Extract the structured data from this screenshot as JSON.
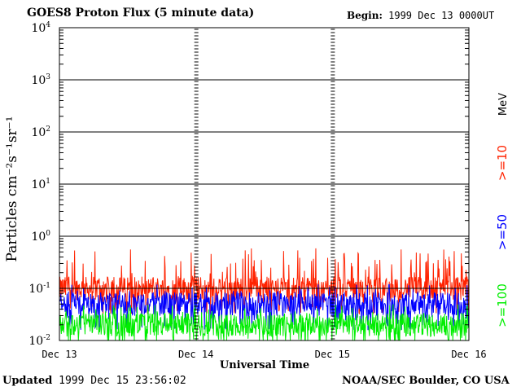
{
  "header": {
    "title": "GOES8 Proton Flux (5 minute data)",
    "begin_label": "Begin:",
    "begin_value": "1999 Dec 13 0000UT"
  },
  "footer": {
    "updated_label": "Updated",
    "updated_value": "1999 Dec 15 23:56:02",
    "credit": "NOAA/SEC Boulder, CO USA"
  },
  "chart_data": {
    "type": "line",
    "title": "GOES8 Proton Flux (5 minute data)",
    "xlabel": "Universal Time",
    "ylabel": "Particles cm⁻²s⁻¹sr⁻¹",
    "y_scale": "log",
    "ylim": [
      0.01,
      10000
    ],
    "y_ticks": [
      {
        "base": "10",
        "exp": "4",
        "value": 10000
      },
      {
        "base": "10",
        "exp": "3",
        "value": 1000
      },
      {
        "base": "10",
        "exp": "2",
        "value": 100
      },
      {
        "base": "10",
        "exp": "1",
        "value": 10
      },
      {
        "base": "10",
        "exp": "0",
        "value": 1
      },
      {
        "base": "10",
        "exp": "-1",
        "value": 0.1
      },
      {
        "base": "10",
        "exp": "-2",
        "value": 0.01
      }
    ],
    "x_range_days": [
      0,
      3
    ],
    "x_ticks": [
      "Dec 13",
      "Dec 14",
      "Dec 15",
      "Dec 16"
    ],
    "grid": true,
    "unit_label": "MeV",
    "series": [
      {
        "name": ">=10",
        "color": "#ff2200",
        "baseline": 0.1,
        "peak": 0.6
      },
      {
        "name": ">=50",
        "color": "#0000ff",
        "baseline": 0.05,
        "peak": 0.12
      },
      {
        "name": ">=100",
        "color": "#00ee00",
        "baseline": 0.02,
        "peak": 0.05
      }
    ]
  }
}
